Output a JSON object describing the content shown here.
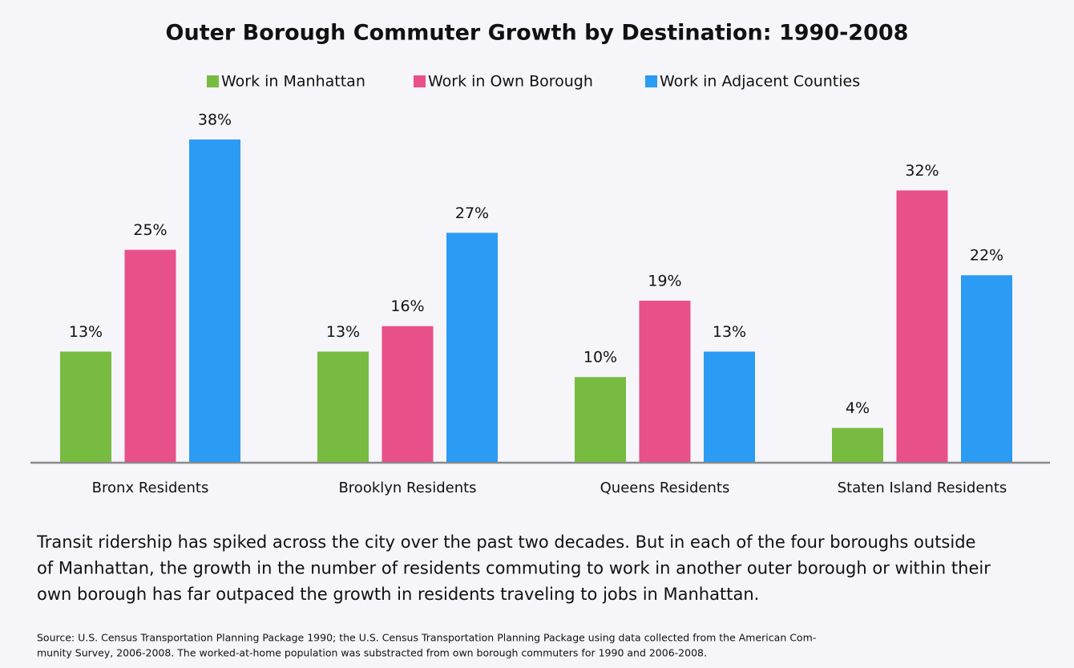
{
  "chart_data": {
    "type": "bar",
    "title": "Outer Borough Commuter Growth by Destination: 1990-2008",
    "categories": [
      "Bronx Residents",
      "Brooklyn Residents",
      "Queens Residents",
      "Staten Island Residents"
    ],
    "series": [
      {
        "name": "Work in Manhattan",
        "color": "#77bb41",
        "values": [
          13,
          13,
          10,
          4
        ],
        "value_labels": [
          "13%",
          "13%",
          "10%",
          "4%"
        ]
      },
      {
        "name": "Work in Own Borough",
        "color": "#e8508a",
        "values": [
          25,
          16,
          19,
          32
        ],
        "value_labels": [
          "25%",
          "16%",
          "19%",
          "32%"
        ]
      },
      {
        "name": "Work in Adjacent Counties",
        "color": "#2b9bf4",
        "values": [
          38,
          27,
          13,
          22
        ],
        "value_labels": [
          "38%",
          "27%",
          "13%",
          "22%"
        ]
      }
    ],
    "caption": [
      "Transit ridership has spiked across the city over the past two decades. But in each of the four boroughs outside",
      "of Manhattan, the growth in the number of residents commuting to work in another outer borough or within their",
      "own borough has far outpaced the growth in residents traveling to jobs in Manhattan."
    ],
    "source": [
      "Source: U.S. Census Transportation Planning Package 1990; the U.S. Census Transportation Planning Package using data collected from the American Com-",
      "munity Survey, 2006-2008. The worked-at-home population was substracted from own borough commuters for 1990 and 2006-2008."
    ]
  }
}
